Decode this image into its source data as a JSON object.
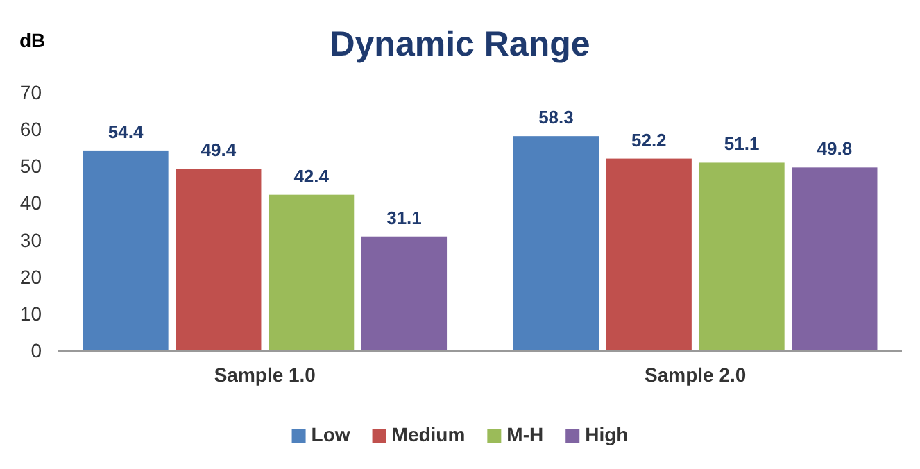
{
  "chart_data": {
    "type": "bar",
    "title": "Dynamic Range",
    "ylabel": "dB",
    "categories": [
      "Sample 1.0",
      "Sample 2.0"
    ],
    "series": [
      {
        "name": "Low",
        "color": "#4f81bd",
        "values": [
          54.4,
          58.3
        ]
      },
      {
        "name": "Medium",
        "color": "#c0504d",
        "values": [
          49.4,
          52.2
        ]
      },
      {
        "name": "M-H",
        "color": "#9bbb59",
        "values": [
          42.4,
          51.1
        ]
      },
      {
        "name": "High",
        "color": "#8064a2",
        "values": [
          31.1,
          49.8
        ]
      }
    ],
    "ylim": [
      0,
      70
    ],
    "yticks": [
      0,
      10,
      20,
      30,
      40,
      50,
      60,
      70
    ],
    "data_labels": true,
    "legend": "bottom",
    "grid": false
  }
}
